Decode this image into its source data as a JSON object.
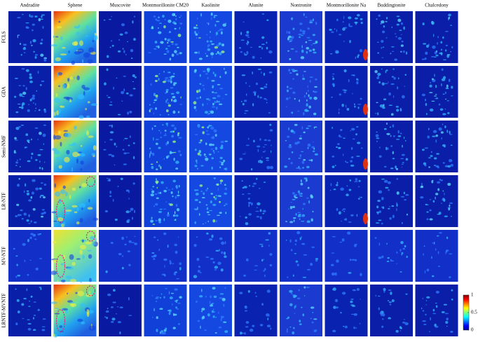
{
  "columns": [
    "Andradite",
    "Sphene",
    "Muscovite",
    "Montmorillonite CM20",
    "Kaolinite",
    "Alunite",
    "Nontronite",
    "Montmorillonite Na",
    "Buddingtonite",
    "Chalcedony"
  ],
  "rows": [
    "FCLS",
    "GDA",
    "Semi-NMF",
    "LR-NTF",
    "MV-NTF",
    "LRNTF-MVNTF"
  ],
  "colorbar": {
    "ticks": [
      1,
      0.5,
      0
    ]
  }
}
